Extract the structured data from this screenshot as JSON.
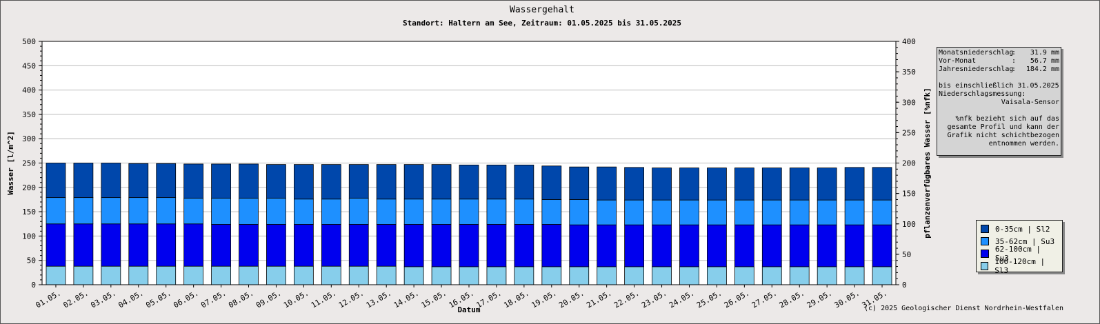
{
  "chart_data": {
    "type": "bar",
    "stacked": true,
    "title": "Wassergehalt",
    "subtitle": "Standort: Haltern am See, Zeitraum: 01.05.2025 bis 31.05.2025",
    "xlabel": "Datum",
    "ylabel": "Wasser [l/m^2]",
    "ylabel_right": "pflanzenverfügbares Wasser [%nfk]",
    "ylim": [
      0,
      500
    ],
    "ylim_right": [
      0,
      400
    ],
    "yticks": [
      0,
      50,
      100,
      150,
      200,
      250,
      300,
      350,
      400,
      450,
      500
    ],
    "yticks_right": [
      0,
      50,
      100,
      150,
      200,
      250,
      300,
      350,
      400
    ],
    "grid": true,
    "legend_position": "bottom-right",
    "categories": [
      "01.05.",
      "02.05.",
      "03.05.",
      "04.05.",
      "05.05.",
      "06.05.",
      "07.05.",
      "08.05.",
      "09.05.",
      "10.05.",
      "11.05.",
      "12.05.",
      "13.05.",
      "14.05.",
      "15.05.",
      "16.05.",
      "17.05.",
      "18.05.",
      "19.05.",
      "20.05.",
      "21.05.",
      "22.05.",
      "23.05.",
      "24.05.",
      "25.05.",
      "26.05.",
      "27.05.",
      "28.05.",
      "29.05.",
      "30.05.",
      "31.05."
    ],
    "series": [
      {
        "name": "100-120cm | Sl3",
        "color": "#87ceeb",
        "values": [
          38,
          38,
          38,
          38,
          38,
          38,
          38,
          38,
          38,
          38,
          38,
          38,
          38,
          37,
          37,
          37,
          37,
          37,
          37,
          37,
          37,
          37,
          37,
          37,
          37,
          37,
          37,
          37,
          37,
          37,
          37
        ]
      },
      {
        "name": "62-100cm | Su3",
        "color": "#0000ee",
        "values": [
          87,
          87,
          87,
          87,
          87,
          87,
          86,
          86,
          86,
          86,
          86,
          86,
          86,
          87,
          87,
          87,
          87,
          87,
          87,
          86,
          86,
          86,
          86,
          86,
          86,
          86,
          86,
          86,
          86,
          86,
          86
        ]
      },
      {
        "name": "35-62cm | Su3",
        "color": "#1e90ff",
        "values": [
          54,
          54,
          54,
          54,
          54,
          53,
          54,
          54,
          54,
          52,
          52,
          54,
          52,
          52,
          52,
          52,
          52,
          52,
          51,
          52,
          51,
          51,
          51,
          51,
          51,
          51,
          51,
          51,
          51,
          51,
          51
        ]
      },
      {
        "name": "0-35cm | Sl2",
        "color": "#0047ab",
        "values": [
          71,
          71,
          71,
          70,
          70,
          70,
          70,
          70,
          69,
          71,
          71,
          69,
          71,
          71,
          71,
          70,
          70,
          70,
          69,
          67,
          68,
          67,
          66,
          66,
          66,
          66,
          66,
          66,
          66,
          67,
          67
        ]
      }
    ]
  },
  "info": {
    "rows": [
      {
        "label": "Monatsniederschlag",
        "sep": ":",
        "value": "31.9 mm"
      },
      {
        "label": "Vor-Monat",
        "sep": ":",
        "value": "56.7 mm"
      },
      {
        "label": "Jahresniederschlag",
        "sep": ":",
        "value": "184.2 mm"
      }
    ],
    "until": "bis einschließlich 31.05.2025",
    "measurement_label": "Niederschlagsmessung:",
    "sensor": "Vaisala-Sensor",
    "note": "%nfk bezieht sich auf das\ngesamte Profil und kann der\nGrafik nicht schichtbezogen\nentnommen werden."
  },
  "copyright": "(c) 2025 Geologischer Dienst Nordrhein-Westfalen"
}
